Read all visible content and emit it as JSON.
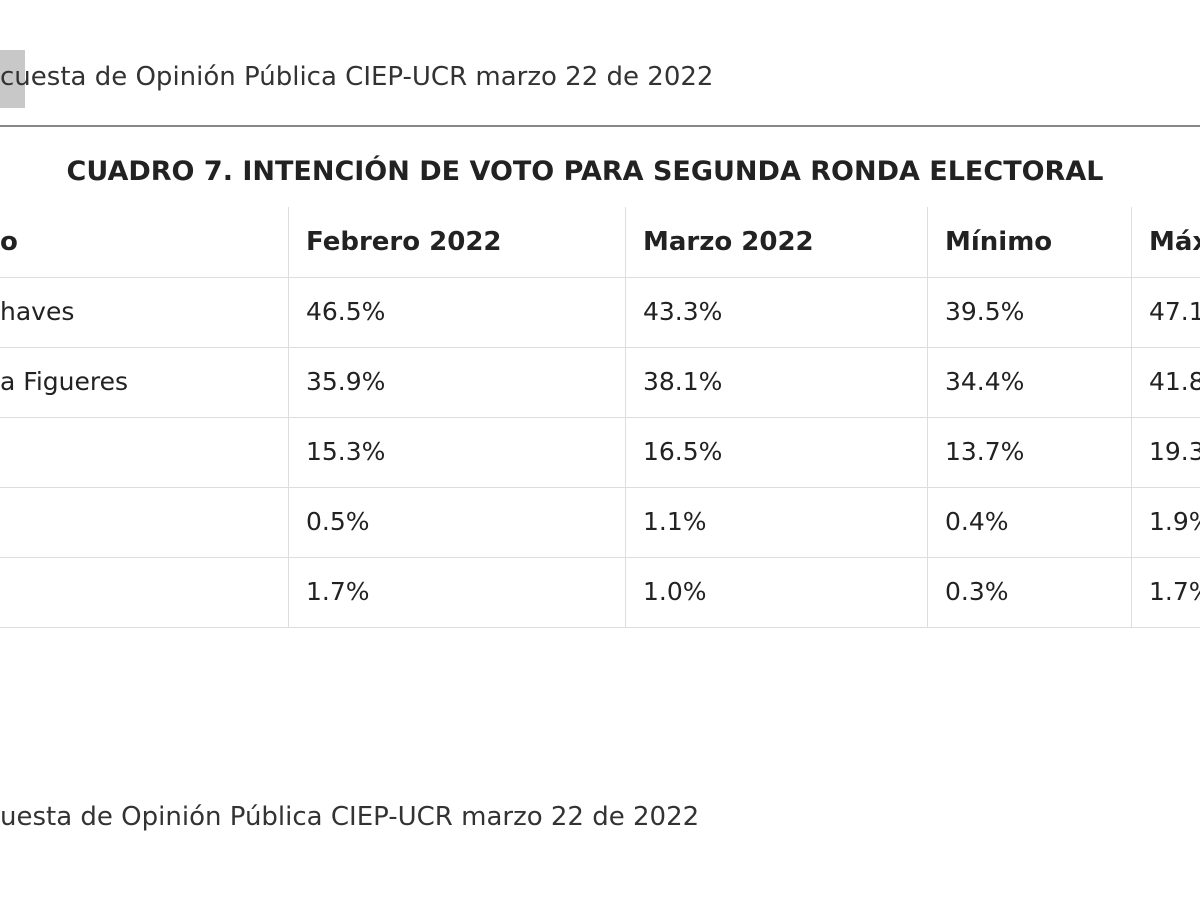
{
  "source_top": "cuesta de Opinión Pública CIEP-UCR marzo 22 de 2022",
  "table": {
    "title": "CUADRO 7. INTENCIÓN DE VOTO PARA SEGUNDA RONDA ELECTORAL",
    "header": [
      "o",
      "Febrero 2022",
      "Marzo 2022",
      "Mínimo",
      "Máx"
    ],
    "rows": [
      {
        "label": "haves",
        "values": [
          "46.5%",
          "43.3%",
          "39.5%",
          "47.1"
        ]
      },
      {
        "label": "a Figueres",
        "values": [
          "35.9%",
          "38.1%",
          "34.4%",
          "41.8"
        ]
      },
      {
        "values": [
          "15.3%",
          "16.5%",
          "13.7%",
          "19.3"
        ]
      },
      {
        "values": [
          "0.5%",
          "1.1%",
          "0.4%",
          "1.9%"
        ]
      },
      {
        "values": [
          "1.7%",
          "1.0%",
          "0.3%",
          "1.7%"
        ]
      }
    ]
  },
  "source_bottom": "uesta de Opinión Pública CIEP-UCR marzo 22 de 2022"
}
